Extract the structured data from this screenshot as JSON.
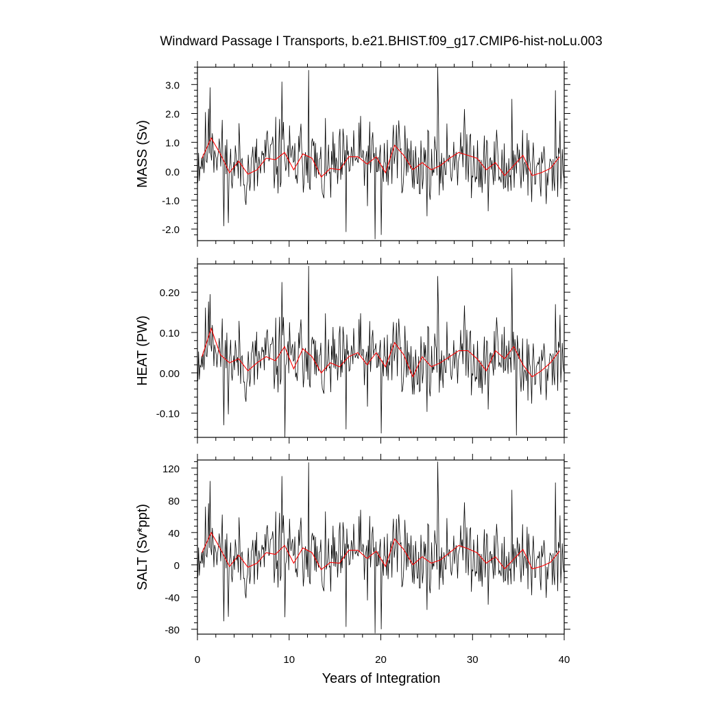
{
  "title": "Windward Passage I Transports, b.e21.BHIST.f09_g17.CMIP6-hist-noLu.003",
  "xlabel": "Years of Integration",
  "colors": {
    "monthly": "#000000",
    "annual": "#ff0000",
    "frame": "#000000"
  },
  "chart_data": [
    {
      "type": "line",
      "ylabel": "MASS (Sv)",
      "ylim": [
        -2.4,
        3.6
      ],
      "xlim": [
        0,
        40
      ],
      "yticks": [
        -2.0,
        -1.0,
        0.0,
        1.0,
        2.0,
        3.0
      ],
      "ytick_labels": [
        "-2.0",
        "-1.0",
        "0.0",
        "1.0",
        "2.0",
        "3.0"
      ],
      "xticks": [
        0,
        10,
        20,
        30,
        40
      ],
      "series": [
        {
          "role": "monthly",
          "gen": {
            "seed": 11,
            "amp": 0.95,
            "min": -2.35,
            "max": 3.5,
            "spikes": [
              [
                1.4,
                2.9
              ],
              [
                2.9,
                -1.9
              ],
              [
                9.2,
                3.1
              ],
              [
                12.1,
                3.5
              ],
              [
                16.2,
                -2.1
              ],
              [
                19.4,
                -2.35
              ],
              [
                20.0,
                -2.2
              ],
              [
                26.2,
                3.6
              ],
              [
                34.3,
                2.5
              ],
              [
                39.0,
                2.8
              ]
            ]
          }
        },
        {
          "role": "annual",
          "x": [
            0.5,
            1.5,
            2.5,
            3.5,
            4.5,
            5.5,
            6.5,
            7.5,
            8.5,
            9.5,
            10.5,
            11.5,
            12.5,
            13.5,
            14.5,
            15.5,
            16.5,
            17.5,
            18.5,
            19.5,
            20.5,
            21.5,
            22.5,
            23.5,
            24.5,
            25.5,
            26.5,
            27.5,
            28.5,
            29.5,
            30.5,
            31.5,
            32.5,
            33.5,
            34.5,
            35.5,
            36.5,
            37.5,
            38.5,
            39.5
          ],
          "y": [
            0.45,
            1.15,
            0.6,
            -0.05,
            0.35,
            -0.1,
            0.05,
            0.45,
            0.4,
            0.65,
            0.05,
            0.6,
            0.45,
            -0.2,
            0.1,
            0.05,
            0.5,
            0.5,
            0.25,
            0.5,
            -0.05,
            0.9,
            0.55,
            0.05,
            0.3,
            0.05,
            0.2,
            0.45,
            0.65,
            0.55,
            0.45,
            0.05,
            0.3,
            -0.15,
            0.2,
            0.55,
            -0.15,
            -0.05,
            0.1,
            0.5
          ]
        }
      ]
    },
    {
      "type": "line",
      "ylabel": "HEAT (PW)",
      "ylim": [
        -0.16,
        0.27
      ],
      "xlim": [
        0,
        40
      ],
      "yticks": [
        -0.1,
        0.0,
        0.1,
        0.2
      ],
      "ytick_labels": [
        "-0.10",
        "0.00",
        "0.10",
        "0.20"
      ],
      "xticks": [
        0,
        10,
        20,
        30,
        40
      ],
      "series": [
        {
          "role": "monthly",
          "gen": {
            "seed": 11,
            "amp": 0.068,
            "min": -0.16,
            "max": 0.265,
            "spikes": [
              [
                1.4,
                0.195
              ],
              [
                2.9,
                -0.13
              ],
              [
                9.2,
                0.225
              ],
              [
                9.5,
                -0.16
              ],
              [
                12.1,
                0.265
              ],
              [
                16.2,
                -0.14
              ],
              [
                20.0,
                -0.15
              ],
              [
                26.2,
                0.24
              ],
              [
                34.3,
                0.26
              ],
              [
                34.8,
                -0.155
              ],
              [
                39.0,
                0.17
              ]
            ]
          }
        },
        {
          "role": "annual",
          "x": [
            0.5,
            1.5,
            2.5,
            3.5,
            4.5,
            5.5,
            6.5,
            7.5,
            8.5,
            9.5,
            10.5,
            11.5,
            12.5,
            13.5,
            14.5,
            15.5,
            16.5,
            17.5,
            18.5,
            19.5,
            20.5,
            21.5,
            22.5,
            23.5,
            24.5,
            25.5,
            26.5,
            27.5,
            28.5,
            29.5,
            30.5,
            31.5,
            32.5,
            33.5,
            34.5,
            35.5,
            36.5,
            37.5,
            38.5,
            39.5
          ],
          "y": [
            0.04,
            0.11,
            0.045,
            0.025,
            0.035,
            0.005,
            0.025,
            0.04,
            0.03,
            0.065,
            0.01,
            0.06,
            0.04,
            0.0,
            0.025,
            0.015,
            0.04,
            0.05,
            0.02,
            0.05,
            0.015,
            0.075,
            0.045,
            -0.01,
            0.04,
            0.015,
            0.025,
            0.04,
            0.055,
            0.055,
            0.035,
            0.005,
            0.055,
            0.035,
            0.065,
            0.02,
            -0.01,
            0.005,
            0.025,
            0.055
          ]
        }
      ]
    },
    {
      "type": "line",
      "ylabel": "SALT (Sv*ppt)",
      "ylim": [
        -86,
        130
      ],
      "xlim": [
        0,
        40
      ],
      "yticks": [
        -80,
        -40,
        0,
        40,
        80,
        120
      ],
      "ytick_labels": [
        "-80",
        "-40",
        "0",
        "40",
        "80",
        "120"
      ],
      "xticks": [
        0,
        10,
        20,
        30,
        40
      ],
      "series": [
        {
          "role": "monthly",
          "gen": {
            "seed": 11,
            "amp": 34,
            "min": -85,
            "max": 128,
            "spikes": [
              [
                1.4,
                104
              ],
              [
                2.9,
                -70
              ],
              [
                9.2,
                110
              ],
              [
                9.5,
                -65
              ],
              [
                12.1,
                127
              ],
              [
                16.2,
                -77
              ],
              [
                19.4,
                -85
              ],
              [
                20.0,
                -80
              ],
              [
                26.2,
                128
              ],
              [
                34.3,
                93
              ],
              [
                39.0,
                102
              ]
            ]
          }
        },
        {
          "role": "annual",
          "x": [
            0.5,
            1.5,
            2.5,
            3.5,
            4.5,
            5.5,
            6.5,
            7.5,
            8.5,
            9.5,
            10.5,
            11.5,
            12.5,
            13.5,
            14.5,
            15.5,
            16.5,
            17.5,
            18.5,
            19.5,
            20.5,
            21.5,
            22.5,
            23.5,
            24.5,
            25.5,
            26.5,
            27.5,
            28.5,
            29.5,
            30.5,
            31.5,
            32.5,
            33.5,
            34.5,
            35.5,
            36.5,
            37.5,
            38.5,
            39.5
          ],
          "y": [
            15,
            40,
            20,
            -2,
            12,
            -3,
            2,
            15,
            13,
            24,
            2,
            21,
            15,
            -6,
            3,
            2,
            18,
            18,
            8,
            17,
            -2,
            32,
            19,
            0,
            10,
            2,
            6,
            15,
            24,
            20,
            15,
            2,
            10,
            -5,
            7,
            19,
            -5,
            -2,
            3,
            17
          ]
        }
      ]
    }
  ]
}
